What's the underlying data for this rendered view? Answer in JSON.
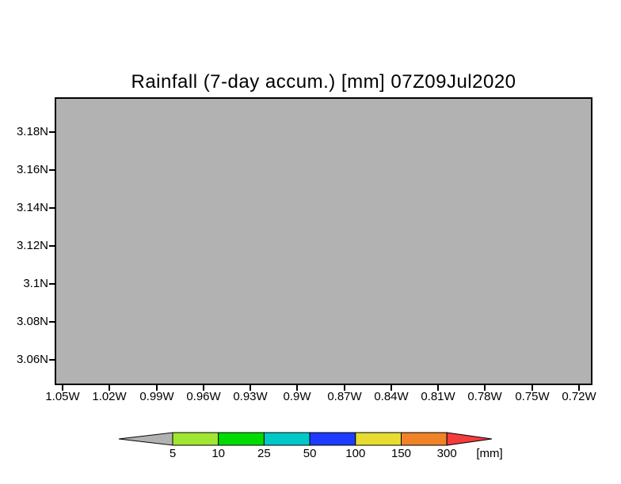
{
  "title": "Rainfall (7-day accum.) [mm] 07Z09Jul2020",
  "colors": {
    "page_background": "#ffffff",
    "plot_fill": "#b2b2b2",
    "frame": "#000000",
    "text": "#000000"
  },
  "y_axis": {
    "tick_labels": [
      "3.18N",
      "3.16N",
      "3.14N",
      "3.12N",
      "3.1N",
      "3.08N",
      "3.06N"
    ]
  },
  "x_axis": {
    "tick_labels": [
      "1.05W",
      "1.02W",
      "0.99W",
      "0.96W",
      "0.93W",
      "0.9W",
      "0.87W",
      "0.84W",
      "0.81W",
      "0.78W",
      "0.75W",
      "0.72W"
    ]
  },
  "colorbar": {
    "below_min_color": "#b2b2b2",
    "above_max_color": "#f53c3c",
    "segment_colors": [
      "#a0e632",
      "#00dc00",
      "#00c8c8",
      "#1e3cff",
      "#e6dc32",
      "#f08228"
    ],
    "boundary_labels": [
      "5",
      "10",
      "25",
      "50",
      "100",
      "150",
      "300"
    ],
    "unit_label": "[mm]"
  },
  "chart_data": {
    "type": "heatmap",
    "title": "Rainfall (7-day accum.) [mm] 07Z09Jul2020",
    "variable": "Rainfall (7-day accumulation)",
    "unit": "mm",
    "valid_time_in_title": "07Z09Jul2020",
    "x_tick_labels": [
      "1.05W",
      "1.02W",
      "0.99W",
      "0.96W",
      "0.93W",
      "0.9W",
      "0.87W",
      "0.84W",
      "0.81W",
      "0.78W",
      "0.75W",
      "0.72W"
    ],
    "y_tick_labels": [
      "3.18N",
      "3.16N",
      "3.14N",
      "3.12N",
      "3.1N",
      "3.08N",
      "3.06N"
    ],
    "x_range_deg_west": [
      1.055,
      0.712
    ],
    "y_range_deg_north": [
      3.047,
      3.198
    ],
    "shading_levels_mm": [
      5,
      10,
      25,
      50,
      100,
      150,
      300
    ],
    "level_colors": {
      "below_5": "#b2b2b2",
      "5_to_10": "#a0e632",
      "10_to_25": "#00dc00",
      "25_to_50": "#00c8c8",
      "50_to_100": "#1e3cff",
      "100_to_150": "#e6dc32",
      "150_to_300": "#f08228",
      "above_300": "#f53c3c"
    },
    "field_values": "uniform, entire domain below lowest level (< 5 mm) shown as solid gray",
    "legend_position": "horizontal colorbar at bottom with triangular under/over arrows",
    "grid": false
  }
}
